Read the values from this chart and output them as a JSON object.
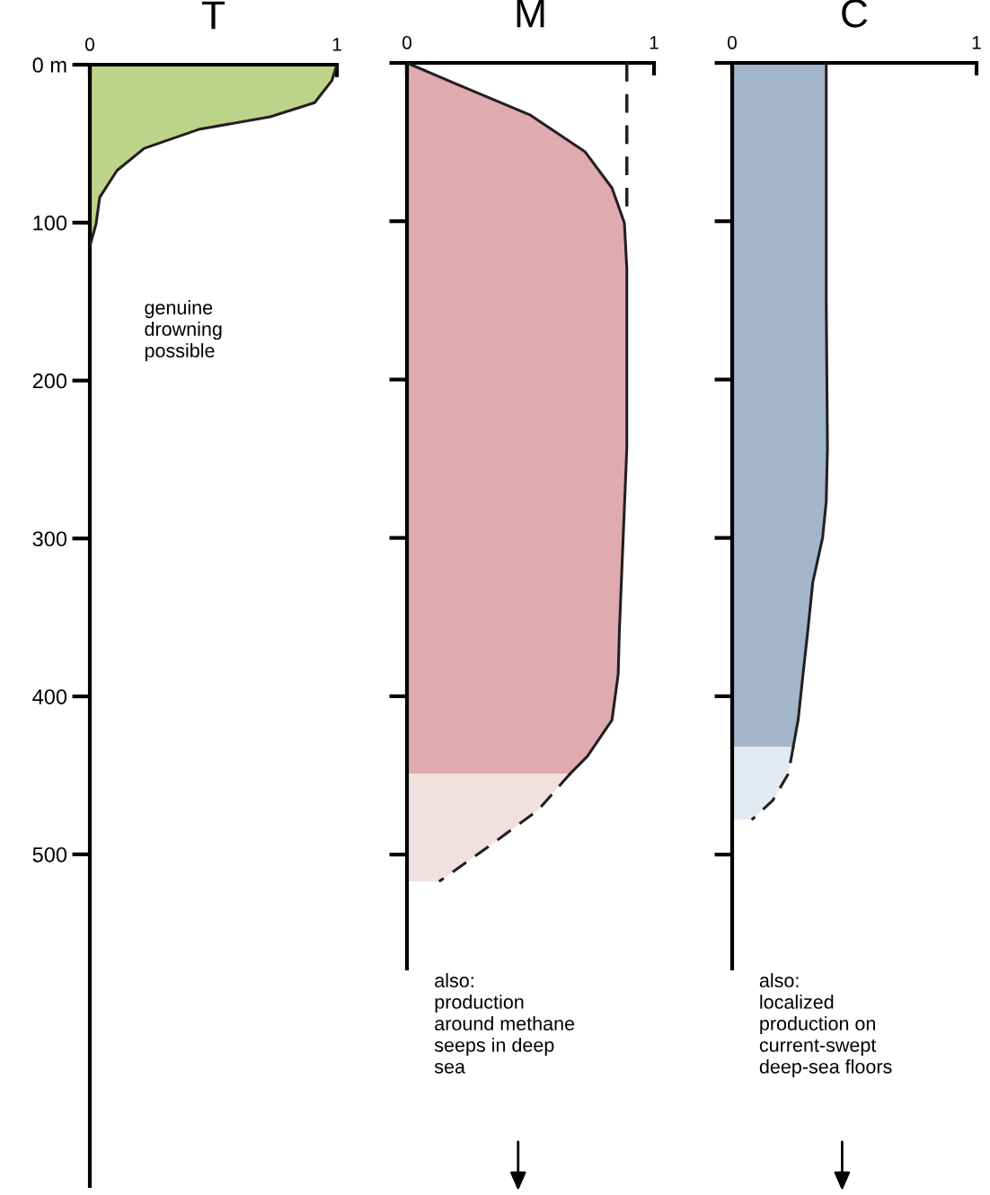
{
  "chart_data": [
    {
      "type": "area",
      "title": "T",
      "orientation": "horizontal",
      "xlim": [
        0,
        1
      ],
      "xticks": [
        0,
        1
      ],
      "ylim": [
        710,
        0
      ],
      "yticks": [
        {
          "value": 0,
          "label": "0 m"
        },
        100,
        200,
        300,
        400,
        500
      ],
      "grid": false,
      "series": [
        {
          "color": "#bdd38a",
          "line_style": "solid",
          "values": [
            1.0,
            0.98,
            0.91,
            0.73,
            0.44,
            0.22,
            0.11,
            0.04,
            0.025,
            0
          ],
          "x": [
            0,
            10,
            24,
            33,
            41,
            53,
            67,
            84,
            101,
            115
          ]
        }
      ],
      "annotations": [
        "genuine\ndrowning\npossible"
      ]
    },
    {
      "type": "area",
      "title": "M",
      "orientation": "horizontal",
      "xlim": [
        0,
        1
      ],
      "xticks": [
        0,
        1
      ],
      "ylim": [
        572,
        0
      ],
      "yticks": [
        0,
        100,
        200,
        300,
        400,
        500
      ],
      "tick_labels": "x",
      "grid": false,
      "series": [
        {
          "color": "#dfabb0",
          "line_style": "solid",
          "values": [
            0,
            0.24,
            0.5,
            0.72,
            0.83,
            0.88,
            0.89,
            0.89,
            0.86,
            0.855,
            0.83,
            0.73,
            0.66
          ],
          "x": [
            0,
            16,
            33,
            56,
            79,
            101,
            130,
            243,
            358,
            386,
            415,
            438,
            449
          ]
        },
        {
          "color": "#f2dfe0",
          "line_style": "dashed",
          "values": [
            0.66,
            0.53,
            0.33,
            0.13
          ],
          "x": [
            449,
            472,
            495,
            517
          ]
        },
        {
          "type": "line",
          "color": "#231f20",
          "line_style": "dashed",
          "values": [
            0.89,
            0.89
          ],
          "x": [
            0,
            97
          ]
        }
      ],
      "annotations": [
        "also:\nproduction\naround methane\nseeps in deep\nsea"
      ]
    },
    {
      "type": "area",
      "title": "C",
      "orientation": "horizontal",
      "xlim": [
        0,
        1
      ],
      "xticks": [
        0,
        1
      ],
      "ylim": [
        572,
        0
      ],
      "yticks": [
        0,
        100,
        200,
        300,
        400,
        500
      ],
      "tick_labels": "x",
      "grid": false,
      "series": [
        {
          "color": "#a3b5c9",
          "line_style": "solid",
          "values": [
            0.385,
            0.385,
            0.39,
            0.385,
            0.37,
            0.33,
            0.31,
            0.29,
            0.27,
            0.25
          ],
          "x": [
            0,
            150,
            243,
            277,
            300,
            328,
            358,
            386,
            415,
            432
          ]
        },
        {
          "color": "#e4eaf1",
          "line_style": "dashed",
          "values": [
            0.25,
            0.23,
            0.165,
            0.08
          ],
          "x": [
            432,
            449,
            466,
            478
          ]
        }
      ],
      "annotations": [
        "also:\nlocalized\nproduction on\ncurrent-swept\ndeep-sea floors"
      ]
    }
  ]
}
